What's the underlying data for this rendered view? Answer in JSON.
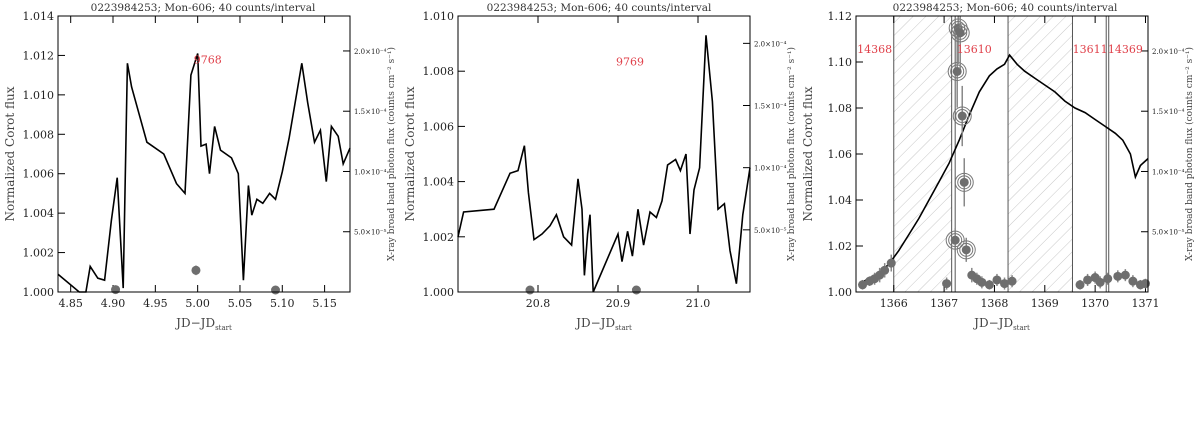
{
  "chart_data": [
    {
      "type": "line",
      "title": "0223984253; Mon-606; 40 counts/interval",
      "xlabel": "JD−JD",
      "xlabel_sub": "start",
      "ylabel": "Normalized Corot flux",
      "y2label": "X-ray broad band photon flux (counts cm⁻² s⁻¹)",
      "xlim": [
        4.835,
        5.18
      ],
      "ylim": [
        1.0,
        1.014
      ],
      "y2lim": [
        0,
        0.000229
      ],
      "xticks": [
        4.85,
        4.9,
        4.95,
        5.0,
        5.05,
        5.1,
        5.15
      ],
      "xtick_labels": [
        "4.85",
        "4.90",
        "4.95",
        "5.00",
        "5.05",
        "5.10",
        "5.15"
      ],
      "yticks": [
        1.0,
        1.002,
        1.004,
        1.006,
        1.008,
        1.01,
        1.012,
        1.014
      ],
      "ytick_labels": [
        "1.000",
        "1.002",
        "1.004",
        "1.006",
        "1.008",
        "1.010",
        "1.012",
        "1.014"
      ],
      "y2ticks": [
        5e-05,
        0.0001,
        0.00015,
        0.0002
      ],
      "y2tick_labels": [
        "5.0×10⁻⁵",
        "1.0×10⁻⁴",
        "1.5×10⁻⁴",
        "2.0×10⁻⁴"
      ],
      "annotations": [
        {
          "text": "9768",
          "x": 5.012,
          "y": 1.0116
        }
      ],
      "corot": {
        "x": [
          4.835,
          4.86,
          4.868,
          4.873,
          4.882,
          4.89,
          4.898,
          4.905,
          4.912,
          4.917,
          4.922,
          4.94,
          4.96,
          4.975,
          4.985,
          4.992,
          5.0,
          5.004,
          5.01,
          5.014,
          5.02,
          5.027,
          5.04,
          5.048,
          5.054,
          5.06,
          5.064,
          5.07,
          5.077,
          5.085,
          5.092,
          5.1,
          5.108,
          5.116,
          5.123,
          5.13,
          5.138,
          5.145,
          5.152,
          5.158,
          5.166,
          5.172,
          5.18
        ],
        "y": [
          1.0009,
          1.0,
          1.0,
          1.0013,
          1.0007,
          1.0006,
          1.0036,
          1.0058,
          1.0002,
          1.0116,
          1.0104,
          1.0076,
          1.007,
          1.0055,
          1.005,
          1.011,
          1.0121,
          1.0074,
          1.0075,
          1.006,
          1.0084,
          1.0072,
          1.0068,
          1.006,
          1.0006,
          1.0054,
          1.0039,
          1.0047,
          1.0045,
          1.005,
          1.0047,
          1.0061,
          1.0078,
          1.0098,
          1.0116,
          1.0096,
          1.0076,
          1.0082,
          1.0056,
          1.0084,
          1.0079,
          1.0065,
          1.0073
        ]
      },
      "xray": {
        "x": [
          4.903,
          4.998,
          5.092
        ],
        "y": [
          2e-06,
          1.8e-05,
          1e-06
        ],
        "err": [
          3e-06,
          4e-06,
          4e-06
        ]
      },
      "intervals": [],
      "obs_lines": []
    },
    {
      "type": "line",
      "title": "0223984253; Mon-606; 40 counts/interval",
      "xlabel": "JD−JD",
      "xlabel_sub": "start",
      "ylabel": "Normalized Corot flux",
      "y2label": "X-ray broad band photon flux (counts cm⁻² s⁻¹)",
      "xlim": [
        20.7,
        21.065
      ],
      "ylim": [
        1.0,
        1.01
      ],
      "y2lim": [
        0,
        0.000222
      ],
      "xticks": [
        20.8,
        20.9,
        21.0
      ],
      "xtick_labels": [
        "20.8",
        "20.9",
        "21.0"
      ],
      "yticks": [
        1.0,
        1.002,
        1.004,
        1.006,
        1.008,
        1.01
      ],
      "ytick_labels": [
        "1.000",
        "1.002",
        "1.004",
        "1.006",
        "1.008",
        "1.010"
      ],
      "y2ticks": [
        5e-05,
        0.0001,
        0.00015,
        0.0002
      ],
      "y2tick_labels": [
        "5.0×10⁻⁵",
        "1.0×10⁻⁴",
        "1.5×10⁻⁴",
        "2.0×10⁻⁴"
      ],
      "annotations": [
        {
          "text": "9769",
          "x": 20.915,
          "y": 1.0082
        }
      ],
      "corot": {
        "x": [
          20.7,
          20.707,
          20.745,
          20.765,
          20.775,
          20.783,
          20.788,
          20.795,
          20.805,
          20.815,
          20.823,
          20.832,
          20.842,
          20.85,
          20.855,
          20.858,
          20.862,
          20.865,
          20.869,
          20.9,
          20.905,
          20.912,
          20.918,
          20.925,
          20.932,
          20.94,
          20.948,
          20.955,
          20.962,
          20.972,
          20.978,
          20.985,
          20.99,
          20.995,
          21.002,
          21.01,
          21.018,
          21.025,
          21.033,
          21.04,
          21.048,
          21.056,
          21.065
        ],
        "y": [
          1.002,
          1.0029,
          1.003,
          1.0043,
          1.0044,
          1.0053,
          1.0036,
          1.0019,
          1.0021,
          1.0024,
          1.0028,
          1.002,
          1.0017,
          1.0041,
          1.003,
          1.0006,
          1.0021,
          1.0028,
          1.0,
          1.0021,
          1.0011,
          1.0022,
          1.0013,
          1.003,
          1.0017,
          1.0029,
          1.0027,
          1.0033,
          1.0046,
          1.0048,
          1.0044,
          1.005,
          1.0021,
          1.0037,
          1.0045,
          1.0093,
          1.0069,
          1.003,
          1.0032,
          1.0015,
          1.0003,
          1.0028,
          1.0045
        ]
      },
      "xray": {
        "x": [
          20.79,
          20.923
        ],
        "y": [
          5e-07,
          8e-07
        ],
        "err": [
          2e-06,
          2e-06
        ]
      },
      "intervals": [],
      "obs_lines": []
    },
    {
      "type": "line",
      "title": "0223984253; Mon-606; 40 counts/interval",
      "xlabel": "JD−JD",
      "xlabel_sub": "start",
      "ylabel": "Normalized Corot flux",
      "y2label": "X-ray broad band photon flux (counts cm⁻² s⁻¹)",
      "xlim": [
        1365.25,
        1371.05
      ],
      "ylim": [
        1.0,
        1.12
      ],
      "y2lim": [
        0,
        0.000229
      ],
      "xticks": [
        1366,
        1367,
        1368,
        1369,
        1370,
        1371
      ],
      "xtick_labels": [
        "1366",
        "1367",
        "1368",
        "1369",
        "1370",
        "1371"
      ],
      "yticks": [
        1.0,
        1.02,
        1.04,
        1.06,
        1.08,
        1.1,
        1.12
      ],
      "ytick_labels": [
        "1.00",
        "1.02",
        "1.04",
        "1.06",
        "1.08",
        "1.10",
        "1.12"
      ],
      "y2ticks": [
        5e-05,
        0.0001,
        0.00015,
        0.0002
      ],
      "y2tick_labels": [
        "5.0×10⁻⁵",
        "1.0×10⁻⁴",
        "1.5×10⁻⁴",
        "2.0×10⁻⁴"
      ],
      "annotations": [
        {
          "text": "14368",
          "x": 1365.62,
          "y": 1.104
        },
        {
          "text": "13610",
          "x": 1367.6,
          "y": 1.104
        },
        {
          "text": "13611",
          "x": 1369.9,
          "y": 1.104
        },
        {
          "text": "14369",
          "x": 1370.6,
          "y": 1.104
        }
      ],
      "intervals": [
        [
          1366.0,
          1367.15
        ],
        [
          1368.27,
          1369.55
        ]
      ],
      "obs_lines": [
        1366.0,
        1367.15,
        1367.22,
        1368.27,
        1369.55,
        1370.22,
        1370.27
      ],
      "corot": {
        "x": [
          1365.3,
          1365.5,
          1365.7,
          1365.9,
          1366.1,
          1366.3,
          1366.5,
          1366.7,
          1366.9,
          1367.1,
          1367.3,
          1367.5,
          1367.7,
          1367.9,
          1368.05,
          1368.2,
          1368.3,
          1368.45,
          1368.6,
          1368.8,
          1369.0,
          1369.2,
          1369.4,
          1369.6,
          1369.8,
          1370.0,
          1370.2,
          1370.4,
          1370.55,
          1370.7,
          1370.8,
          1370.9,
          1371.05
        ],
        "y": [
          1.003,
          1.006,
          1.008,
          1.012,
          1.018,
          1.025,
          1.032,
          1.04,
          1.048,
          1.056,
          1.066,
          1.077,
          1.087,
          1.094,
          1.097,
          1.099,
          1.103,
          1.099,
          1.096,
          1.093,
          1.09,
          1.087,
          1.083,
          1.08,
          1.078,
          1.075,
          1.072,
          1.069,
          1.066,
          1.06,
          1.05,
          1.055,
          1.058
        ]
      },
      "xray": {
        "x": [
          1365.38,
          1365.52,
          1365.62,
          1365.72,
          1365.82,
          1365.95,
          1367.05,
          1367.22,
          1367.26,
          1367.28,
          1367.32,
          1367.36,
          1367.4,
          1367.44,
          1367.55,
          1367.65,
          1367.75,
          1367.9,
          1368.05,
          1368.2,
          1368.35,
          1369.7,
          1369.85,
          1370.0,
          1370.1,
          1370.25,
          1370.45,
          1370.6,
          1370.75,
          1370.9,
          1371.0
        ],
        "y": [
          6e-06,
          9e-06,
          1.1e-05,
          1.4e-05,
          1.8e-05,
          2.4e-05,
          7e-06,
          4.3e-05,
          0.000183,
          0.000219,
          0.000215,
          0.000146,
          9.1e-05,
          3.5e-05,
          1.4e-05,
          1.1e-05,
          8e-06,
          6e-06,
          1e-05,
          7e-06,
          9e-06,
          6e-06,
          1e-05,
          1.2e-05,
          8e-06,
          1.1e-05,
          1.3e-05,
          1.4e-05,
          9e-06,
          6e-06,
          7e-06
        ],
        "err": [
          4e-06,
          4e-06,
          5e-06,
          6e-06,
          6e-06,
          7e-06,
          5e-06,
          1e-05,
          3e-05,
          3e-05,
          3e-05,
          2.5e-05,
          2e-05,
          1e-05,
          6e-06,
          5e-06,
          5e-06,
          4e-06,
          5e-06,
          5e-06,
          5e-06,
          4e-06,
          5e-06,
          5e-06,
          5e-06,
          5e-06,
          5e-06,
          5e-06,
          5e-06,
          4e-06,
          4e-06
        ],
        "circled": [
          4.3e-05,
          0.000183,
          0.000219,
          0.000215,
          0.000146,
          9.1e-05,
          3.5e-05
        ]
      }
    }
  ]
}
